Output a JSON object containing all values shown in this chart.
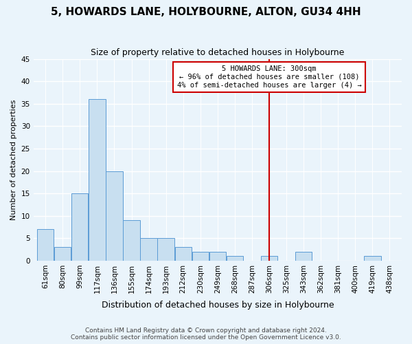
{
  "title": "5, HOWARDS LANE, HOLYBOURNE, ALTON, GU34 4HH",
  "subtitle": "Size of property relative to detached houses in Holybourne",
  "xlabel": "Distribution of detached houses by size in Holybourne",
  "ylabel": "Number of detached properties",
  "bin_labels": [
    "61sqm",
    "80sqm",
    "99sqm",
    "117sqm",
    "136sqm",
    "155sqm",
    "174sqm",
    "193sqm",
    "212sqm",
    "230sqm",
    "249sqm",
    "268sqm",
    "287sqm",
    "306sqm",
    "325sqm",
    "343sqm",
    "362sqm",
    "381sqm",
    "400sqm",
    "419sqm",
    "438sqm"
  ],
  "bar_heights": [
    7,
    3,
    15,
    36,
    20,
    9,
    5,
    5,
    3,
    2,
    2,
    1,
    0,
    1,
    0,
    2,
    0,
    0,
    0,
    1,
    0
  ],
  "bar_color": "#c8dff0",
  "bar_edge_color": "#5b9bd5",
  "vline_color": "#cc0000",
  "annotation_title": "5 HOWARDS LANE: 300sqm",
  "annotation_line1": "← 96% of detached houses are smaller (108)",
  "annotation_line2": "4% of semi-detached houses are larger (4) →",
  "annotation_box_color": "#ffffff",
  "annotation_box_edge_color": "#cc0000",
  "ylim": [
    0,
    45
  ],
  "yticks": [
    0,
    5,
    10,
    15,
    20,
    25,
    30,
    35,
    40,
    45
  ],
  "footer1": "Contains HM Land Registry data © Crown copyright and database right 2024.",
  "footer2": "Contains public sector information licensed under the Open Government Licence v3.0.",
  "background_color": "#eaf4fb",
  "grid_color": "#ffffff",
  "title_fontsize": 11,
  "subtitle_fontsize": 9,
  "xlabel_fontsize": 9,
  "ylabel_fontsize": 8,
  "tick_fontsize": 7.5,
  "footer_fontsize": 6.5
}
